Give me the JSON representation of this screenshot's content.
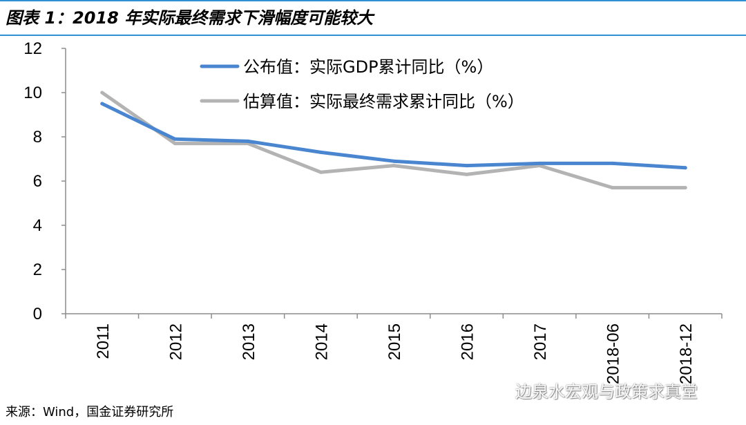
{
  "header": {
    "title": "图表 1：2018 年实际最终需求下滑幅度可能较大"
  },
  "footer": {
    "source": "来源：Wind，国金证券研究所",
    "watermark": "边泉水宏观与政策求真堂"
  },
  "colors": {
    "title_rule": "#2f8fd3",
    "series_gdp": "#4a86d0",
    "series_demand": "#b3b3b3",
    "axis": "#8c8c8c"
  },
  "chart_data": {
    "type": "line",
    "title": "",
    "xlabel": "",
    "ylabel": "",
    "categories": [
      "2011",
      "2012",
      "2013",
      "2014",
      "2015",
      "2016",
      "2017",
      "2018-06",
      "2018-12"
    ],
    "ylim": [
      0,
      12
    ],
    "yticks": [
      0,
      2,
      4,
      6,
      8,
      10,
      12
    ],
    "grid": false,
    "legend_position": "top",
    "series": [
      {
        "name": "公布值：实际GDP累计同比（%）",
        "color": "#4a86d0",
        "values": [
          9.5,
          7.9,
          7.8,
          7.3,
          6.9,
          6.7,
          6.8,
          6.8,
          6.6
        ]
      },
      {
        "name": "估算值：实际最终需求累计同比（%）",
        "color": "#b3b3b3",
        "values": [
          10.0,
          7.7,
          7.7,
          6.4,
          6.7,
          6.3,
          6.7,
          5.7,
          5.7
        ]
      }
    ]
  }
}
